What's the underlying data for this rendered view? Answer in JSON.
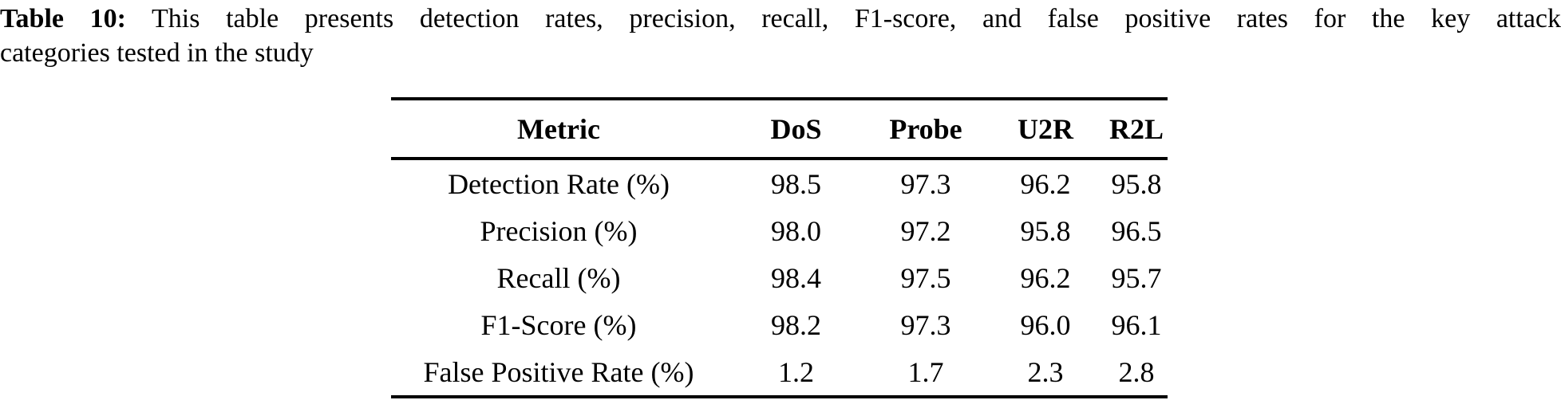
{
  "caption": {
    "label": "Table 10:",
    "line1_rest": " This table presents detection rates, precision, recall, F1-score, and false positive rates for the key attack",
    "line2": "categories tested in the study"
  },
  "table": {
    "columns": [
      "Metric",
      "DoS",
      "Probe",
      "U2R",
      "R2L"
    ],
    "rows": [
      {
        "metric": "Detection Rate (%)",
        "values": [
          "98.5",
          "97.3",
          "96.2",
          "95.8"
        ]
      },
      {
        "metric": "Precision (%)",
        "values": [
          "98.0",
          "97.2",
          "95.8",
          "96.5"
        ]
      },
      {
        "metric": "Recall (%)",
        "values": [
          "98.4",
          "97.5",
          "96.2",
          "95.7"
        ]
      },
      {
        "metric": "F1-Score (%)",
        "values": [
          "98.2",
          "97.3",
          "96.0",
          "96.1"
        ]
      },
      {
        "metric": "False Positive Rate (%)",
        "values": [
          "1.2",
          "1.7",
          "2.3",
          "2.8"
        ]
      }
    ]
  },
  "colors": {
    "text": "#000000",
    "background": "#ffffff",
    "rule": "#000000"
  }
}
